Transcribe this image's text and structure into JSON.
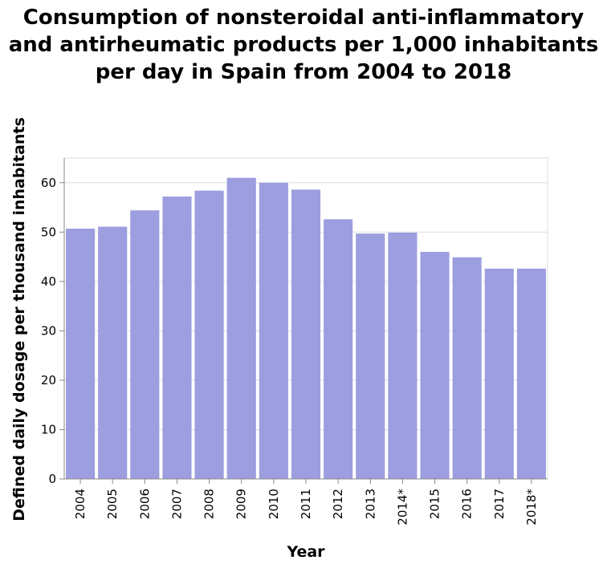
{
  "chart_data": {
    "type": "bar",
    "title_lines": [
      "Consumption of nonsteroidal anti-inflammatory",
      "and antirheumatic products per 1,000 inhabitants",
      "per day in Spain from 2004 to 2018"
    ],
    "xlabel": "Year",
    "ylabel": "Defined daily dosage per thousand inhabitants",
    "categories": [
      "2004",
      "2005",
      "2006",
      "2007",
      "2008",
      "2009",
      "2010",
      "2011",
      "2012",
      "2013",
      "2014*",
      "2015",
      "2016",
      "2017",
      "2018*"
    ],
    "values": [
      50.7,
      51.1,
      54.4,
      57.2,
      58.4,
      61.0,
      60.0,
      58.6,
      52.6,
      49.7,
      49.9,
      46.0,
      44.9,
      42.6,
      42.6
    ],
    "ylim": [
      0,
      65
    ],
    "yticks": [
      "0",
      "10",
      "20",
      "30",
      "40",
      "50",
      "60"
    ],
    "grid": true,
    "bar_color": "#9c9ee0",
    "grid_color": "#dddddd",
    "axis_color": "#888888"
  }
}
